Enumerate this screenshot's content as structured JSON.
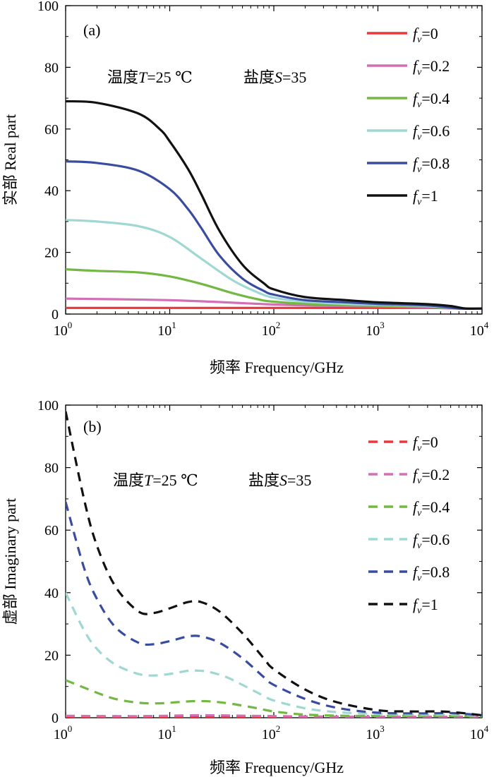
{
  "chart_data": [
    {
      "panel_label": "(a)",
      "type": "line",
      "xlabel": "频率 Frequency/GHz",
      "ylabel": "实部 Real part",
      "xscale": "log",
      "xlim": [
        1,
        10000
      ],
      "ylim": [
        0,
        100
      ],
      "yticks": [
        "0",
        "20",
        "40",
        "60",
        "80",
        "100"
      ],
      "xticks": [
        {
          "base": "10",
          "exp": "0"
        },
        {
          "base": "10",
          "exp": "1"
        },
        {
          "base": "10",
          "exp": "2"
        },
        {
          "base": "10",
          "exp": "3"
        },
        {
          "base": "10",
          "exp": "4"
        }
      ],
      "annotation": {
        "temp_prefix": "温度",
        "temp_var": "T",
        "temp_value": "=25 ℃",
        "sal_prefix": "盐度",
        "sal_var": "S",
        "sal_value": "=35"
      },
      "line_style": "solid",
      "legend_position": "top-right",
      "series": [
        {
          "legend_var": "f",
          "legend_sub": "v",
          "legend_value": "=0",
          "color": "#e8383b",
          "points": [
            [
              1,
              2.0
            ],
            [
              10,
              2.0
            ],
            [
              100,
              2.0
            ],
            [
              1000,
              2.0
            ],
            [
              3000,
              2.0
            ],
            [
              6000,
              1.8
            ],
            [
              10000,
              1.8
            ]
          ]
        },
        {
          "legend_var": "f",
          "legend_sub": "v",
          "legend_value": "=0.2",
          "color": "#d26fb5",
          "points": [
            [
              1,
              5.0
            ],
            [
              3,
              4.8
            ],
            [
              10,
              4.5
            ],
            [
              30,
              3.9
            ],
            [
              100,
              3.1
            ],
            [
              300,
              2.7
            ],
            [
              1000,
              2.5
            ],
            [
              3000,
              2.2
            ],
            [
              6000,
              1.8
            ],
            [
              10000,
              1.8
            ]
          ]
        },
        {
          "legend_var": "f",
          "legend_sub": "v",
          "legend_value": "=0.4",
          "color": "#72b843",
          "points": [
            [
              1,
              14.5
            ],
            [
              2,
              14.0
            ],
            [
              5,
              13.5
            ],
            [
              10,
              12.2
            ],
            [
              20,
              9.8
            ],
            [
              40,
              6.8
            ],
            [
              70,
              4.8
            ],
            [
              100,
              4.0
            ],
            [
              300,
              3.0
            ],
            [
              1000,
              2.7
            ],
            [
              3000,
              2.4
            ],
            [
              6000,
              1.8
            ],
            [
              10000,
              1.8
            ]
          ]
        },
        {
          "legend_var": "f",
          "legend_sub": "v",
          "legend_value": "=0.6",
          "color": "#9fd8d2",
          "points": [
            [
              1,
              30.5
            ],
            [
              2,
              30.0
            ],
            [
              5,
              28.5
            ],
            [
              10,
              25.0
            ],
            [
              20,
              18.0
            ],
            [
              40,
              11.0
            ],
            [
              70,
              7.0
            ],
            [
              100,
              5.3
            ],
            [
              200,
              4.0
            ],
            [
              500,
              3.3
            ],
            [
              1000,
              3.0
            ],
            [
              3000,
              2.6
            ],
            [
              6000,
              1.8
            ],
            [
              10000,
              1.8
            ]
          ]
        },
        {
          "legend_var": "f",
          "legend_sub": "v",
          "legend_value": "=0.8",
          "color": "#3a4ca0",
          "points": [
            [
              1,
              49.5
            ],
            [
              2,
              49.0
            ],
            [
              5,
              46.5
            ],
            [
              10,
              40.5
            ],
            [
              15,
              34.0
            ],
            [
              20,
              28.0
            ],
            [
              30,
              19.0
            ],
            [
              50,
              11.5
            ],
            [
              80,
              7.5
            ],
            [
              100,
              6.3
            ],
            [
              200,
              4.5
            ],
            [
              500,
              3.8
            ],
            [
              1000,
              3.3
            ],
            [
              3000,
              2.8
            ],
            [
              6000,
              1.8
            ],
            [
              10000,
              1.8
            ]
          ]
        },
        {
          "legend_var": "f",
          "legend_sub": "v",
          "legend_value": "=1",
          "color": "#111111",
          "points": [
            [
              1,
              69.0
            ],
            [
              2,
              68.5
            ],
            [
              5,
              65.0
            ],
            [
              8,
              60.0
            ],
            [
              10,
              56.0
            ],
            [
              15,
              47.0
            ],
            [
              20,
              39.0
            ],
            [
              30,
              27.0
            ],
            [
              50,
              16.0
            ],
            [
              80,
              10.0
            ],
            [
              100,
              8.0
            ],
            [
              200,
              5.5
            ],
            [
              500,
              4.5
            ],
            [
              1000,
              3.8
            ],
            [
              3000,
              3.2
            ],
            [
              5000,
              2.6
            ],
            [
              7000,
              1.8
            ],
            [
              10000,
              1.8
            ]
          ]
        }
      ]
    },
    {
      "panel_label": "(b)",
      "type": "line",
      "xlabel": "频率 Frequency/GHz",
      "ylabel": "虚部 Imaginary part",
      "xscale": "log",
      "xlim": [
        1,
        10000
      ],
      "ylim": [
        0,
        100
      ],
      "yticks": [
        "0",
        "20",
        "40",
        "60",
        "80",
        "100"
      ],
      "xticks": [
        {
          "base": "10",
          "exp": "0"
        },
        {
          "base": "10",
          "exp": "1"
        },
        {
          "base": "10",
          "exp": "2"
        },
        {
          "base": "10",
          "exp": "3"
        },
        {
          "base": "10",
          "exp": "4"
        }
      ],
      "annotation": {
        "temp_prefix": "温度",
        "temp_var": "T",
        "temp_value": "=25 ℃",
        "sal_prefix": "盐度",
        "sal_var": "S",
        "sal_value": "=35"
      },
      "line_style": "dashed",
      "legend_position": "top-right",
      "series": [
        {
          "legend_var": "f",
          "legend_sub": "v",
          "legend_value": "=0",
          "color": "#e8383b",
          "points": [
            [
              1,
              0.3
            ],
            [
              10,
              0.3
            ],
            [
              100,
              0.3
            ],
            [
              1000,
              0.3
            ],
            [
              10000,
              0.3
            ]
          ]
        },
        {
          "legend_var": "f",
          "legend_sub": "v",
          "legend_value": "=0.2",
          "color": "#d26fb5",
          "points": [
            [
              1,
              0.6
            ],
            [
              5,
              0.5
            ],
            [
              20,
              0.8
            ],
            [
              60,
              0.6
            ],
            [
              200,
              0.4
            ],
            [
              1000,
              0.3
            ],
            [
              10000,
              0.3
            ]
          ]
        },
        {
          "legend_var": "f",
          "legend_sub": "v",
          "legend_value": "=0.4",
          "color": "#72b843",
          "points": [
            [
              1,
              12.0
            ],
            [
              2,
              8.0
            ],
            [
              3,
              6.0
            ],
            [
              5,
              4.8
            ],
            [
              8,
              4.6
            ],
            [
              12,
              5.0
            ],
            [
              17,
              5.3
            ],
            [
              25,
              5.2
            ],
            [
              40,
              4.4
            ],
            [
              70,
              3.0
            ],
            [
              100,
              2.0
            ],
            [
              200,
              1.0
            ],
            [
              500,
              0.6
            ],
            [
              1000,
              0.6
            ],
            [
              3000,
              0.6
            ],
            [
              10000,
              0.4
            ]
          ]
        },
        {
          "legend_var": "f",
          "legend_sub": "v",
          "legend_value": "=0.6",
          "color": "#9fd8d2",
          "points": [
            [
              1,
              40.0
            ],
            [
              1.5,
              28.0
            ],
            [
              2,
              22.0
            ],
            [
              3,
              17.0
            ],
            [
              5,
              14.0
            ],
            [
              7,
              13.5
            ],
            [
              10,
              14.0
            ],
            [
              15,
              15.0
            ],
            [
              20,
              15.0
            ],
            [
              25,
              14.5
            ],
            [
              35,
              13.0
            ],
            [
              50,
              10.5
            ],
            [
              80,
              7.0
            ],
            [
              100,
              5.5
            ],
            [
              200,
              3.0
            ],
            [
              400,
              1.8
            ],
            [
              1000,
              1.2
            ],
            [
              3000,
              1.0
            ],
            [
              6000,
              1.0
            ],
            [
              10000,
              0.6
            ]
          ]
        },
        {
          "legend_var": "f",
          "legend_sub": "v",
          "legend_value": "=0.8",
          "color": "#3a4ca0",
          "points": [
            [
              1,
              69.0
            ],
            [
              1.5,
              48.0
            ],
            [
              2,
              38.0
            ],
            [
              3,
              29.0
            ],
            [
              5,
              24.0
            ],
            [
              7,
              23.5
            ],
            [
              10,
              24.5
            ],
            [
              15,
              26.0
            ],
            [
              20,
              26.0
            ],
            [
              30,
              24.0
            ],
            [
              50,
              19.0
            ],
            [
              80,
              13.0
            ],
            [
              100,
              10.5
            ],
            [
              200,
              6.0
            ],
            [
              400,
              3.2
            ],
            [
              1000,
              1.6
            ],
            [
              3000,
              1.4
            ],
            [
              5000,
              1.5
            ],
            [
              10000,
              0.8
            ]
          ]
        },
        {
          "legend_var": "f",
          "legend_sub": "v",
          "legend_value": "=1",
          "color": "#111111",
          "points": [
            [
              1,
              98.0
            ],
            [
              1.5,
              70.0
            ],
            [
              2,
              55.0
            ],
            [
              3,
              42.0
            ],
            [
              5,
              34.0
            ],
            [
              7,
              33.5
            ],
            [
              10,
              35.0
            ],
            [
              15,
              37.0
            ],
            [
              20,
              37.0
            ],
            [
              30,
              34.0
            ],
            [
              50,
              27.0
            ],
            [
              80,
              19.0
            ],
            [
              100,
              15.5
            ],
            [
              200,
              9.0
            ],
            [
              400,
              5.0
            ],
            [
              1000,
              2.4
            ],
            [
              2000,
              2.0
            ],
            [
              4000,
              2.0
            ],
            [
              6000,
              1.6
            ],
            [
              10000,
              0.8
            ]
          ]
        }
      ]
    }
  ]
}
